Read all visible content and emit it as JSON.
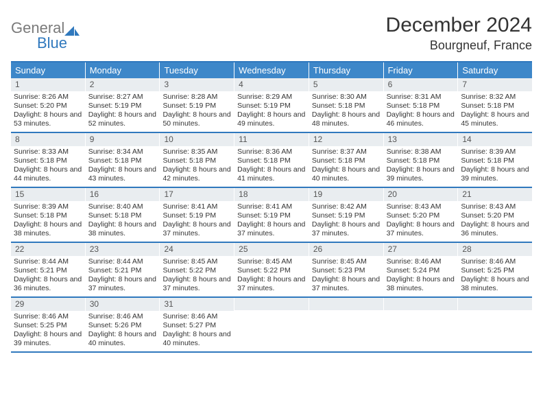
{
  "brand": {
    "general": "General",
    "blue": "Blue"
  },
  "title": "December 2024",
  "location": "Bourgneuf, France",
  "colors": {
    "header_bg": "#3d87c9",
    "border": "#2f78bd",
    "daynum_bg": "#e9edf0",
    "text": "#333333",
    "logo_gray": "#7a7a7a",
    "logo_blue": "#2f78bd"
  },
  "weekdays": [
    "Sunday",
    "Monday",
    "Tuesday",
    "Wednesday",
    "Thursday",
    "Friday",
    "Saturday"
  ],
  "weeks": [
    [
      {
        "n": "1",
        "sr": "Sunrise: 8:26 AM",
        "ss": "Sunset: 5:20 PM",
        "dl": "Daylight: 8 hours and 53 minutes."
      },
      {
        "n": "2",
        "sr": "Sunrise: 8:27 AM",
        "ss": "Sunset: 5:19 PM",
        "dl": "Daylight: 8 hours and 52 minutes."
      },
      {
        "n": "3",
        "sr": "Sunrise: 8:28 AM",
        "ss": "Sunset: 5:19 PM",
        "dl": "Daylight: 8 hours and 50 minutes."
      },
      {
        "n": "4",
        "sr": "Sunrise: 8:29 AM",
        "ss": "Sunset: 5:19 PM",
        "dl": "Daylight: 8 hours and 49 minutes."
      },
      {
        "n": "5",
        "sr": "Sunrise: 8:30 AM",
        "ss": "Sunset: 5:18 PM",
        "dl": "Daylight: 8 hours and 48 minutes."
      },
      {
        "n": "6",
        "sr": "Sunrise: 8:31 AM",
        "ss": "Sunset: 5:18 PM",
        "dl": "Daylight: 8 hours and 46 minutes."
      },
      {
        "n": "7",
        "sr": "Sunrise: 8:32 AM",
        "ss": "Sunset: 5:18 PM",
        "dl": "Daylight: 8 hours and 45 minutes."
      }
    ],
    [
      {
        "n": "8",
        "sr": "Sunrise: 8:33 AM",
        "ss": "Sunset: 5:18 PM",
        "dl": "Daylight: 8 hours and 44 minutes."
      },
      {
        "n": "9",
        "sr": "Sunrise: 8:34 AM",
        "ss": "Sunset: 5:18 PM",
        "dl": "Daylight: 8 hours and 43 minutes."
      },
      {
        "n": "10",
        "sr": "Sunrise: 8:35 AM",
        "ss": "Sunset: 5:18 PM",
        "dl": "Daylight: 8 hours and 42 minutes."
      },
      {
        "n": "11",
        "sr": "Sunrise: 8:36 AM",
        "ss": "Sunset: 5:18 PM",
        "dl": "Daylight: 8 hours and 41 minutes."
      },
      {
        "n": "12",
        "sr": "Sunrise: 8:37 AM",
        "ss": "Sunset: 5:18 PM",
        "dl": "Daylight: 8 hours and 40 minutes."
      },
      {
        "n": "13",
        "sr": "Sunrise: 8:38 AM",
        "ss": "Sunset: 5:18 PM",
        "dl": "Daylight: 8 hours and 39 minutes."
      },
      {
        "n": "14",
        "sr": "Sunrise: 8:39 AM",
        "ss": "Sunset: 5:18 PM",
        "dl": "Daylight: 8 hours and 39 minutes."
      }
    ],
    [
      {
        "n": "15",
        "sr": "Sunrise: 8:39 AM",
        "ss": "Sunset: 5:18 PM",
        "dl": "Daylight: 8 hours and 38 minutes."
      },
      {
        "n": "16",
        "sr": "Sunrise: 8:40 AM",
        "ss": "Sunset: 5:18 PM",
        "dl": "Daylight: 8 hours and 38 minutes."
      },
      {
        "n": "17",
        "sr": "Sunrise: 8:41 AM",
        "ss": "Sunset: 5:19 PM",
        "dl": "Daylight: 8 hours and 37 minutes."
      },
      {
        "n": "18",
        "sr": "Sunrise: 8:41 AM",
        "ss": "Sunset: 5:19 PM",
        "dl": "Daylight: 8 hours and 37 minutes."
      },
      {
        "n": "19",
        "sr": "Sunrise: 8:42 AM",
        "ss": "Sunset: 5:19 PM",
        "dl": "Daylight: 8 hours and 37 minutes."
      },
      {
        "n": "20",
        "sr": "Sunrise: 8:43 AM",
        "ss": "Sunset: 5:20 PM",
        "dl": "Daylight: 8 hours and 37 minutes."
      },
      {
        "n": "21",
        "sr": "Sunrise: 8:43 AM",
        "ss": "Sunset: 5:20 PM",
        "dl": "Daylight: 8 hours and 36 minutes."
      }
    ],
    [
      {
        "n": "22",
        "sr": "Sunrise: 8:44 AM",
        "ss": "Sunset: 5:21 PM",
        "dl": "Daylight: 8 hours and 36 minutes."
      },
      {
        "n": "23",
        "sr": "Sunrise: 8:44 AM",
        "ss": "Sunset: 5:21 PM",
        "dl": "Daylight: 8 hours and 37 minutes."
      },
      {
        "n": "24",
        "sr": "Sunrise: 8:45 AM",
        "ss": "Sunset: 5:22 PM",
        "dl": "Daylight: 8 hours and 37 minutes."
      },
      {
        "n": "25",
        "sr": "Sunrise: 8:45 AM",
        "ss": "Sunset: 5:22 PM",
        "dl": "Daylight: 8 hours and 37 minutes."
      },
      {
        "n": "26",
        "sr": "Sunrise: 8:45 AM",
        "ss": "Sunset: 5:23 PM",
        "dl": "Daylight: 8 hours and 37 minutes."
      },
      {
        "n": "27",
        "sr": "Sunrise: 8:46 AM",
        "ss": "Sunset: 5:24 PM",
        "dl": "Daylight: 8 hours and 38 minutes."
      },
      {
        "n": "28",
        "sr": "Sunrise: 8:46 AM",
        "ss": "Sunset: 5:25 PM",
        "dl": "Daylight: 8 hours and 38 minutes."
      }
    ],
    [
      {
        "n": "29",
        "sr": "Sunrise: 8:46 AM",
        "ss": "Sunset: 5:25 PM",
        "dl": "Daylight: 8 hours and 39 minutes."
      },
      {
        "n": "30",
        "sr": "Sunrise: 8:46 AM",
        "ss": "Sunset: 5:26 PM",
        "dl": "Daylight: 8 hours and 40 minutes."
      },
      {
        "n": "31",
        "sr": "Sunrise: 8:46 AM",
        "ss": "Sunset: 5:27 PM",
        "dl": "Daylight: 8 hours and 40 minutes."
      },
      {
        "empty": true
      },
      {
        "empty": true
      },
      {
        "empty": true
      },
      {
        "empty": true
      }
    ]
  ]
}
